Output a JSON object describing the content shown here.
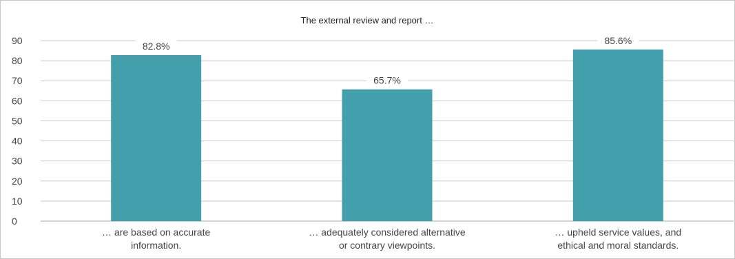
{
  "chart_data": {
    "type": "bar",
    "title": "The external review and report …",
    "categories": [
      [
        "… are based on accurate",
        "information."
      ],
      [
        "… adequately considered alternative",
        "or contrary viewpoints."
      ],
      [
        "… upheld service values, and",
        "ethical and moral standards."
      ]
    ],
    "values": [
      82.8,
      65.7,
      85.6
    ],
    "data_labels": [
      "82.8%",
      "65.7%",
      "85.6%"
    ],
    "yticks": [
      0,
      10,
      20,
      30,
      40,
      50,
      60,
      70,
      80,
      90
    ],
    "ylim": [
      0,
      90
    ],
    "grid": true,
    "legend": "none",
    "colors": {
      "bar": "#429fab",
      "grid": "#c8c8c8",
      "axis": "#a6a6a6"
    }
  }
}
